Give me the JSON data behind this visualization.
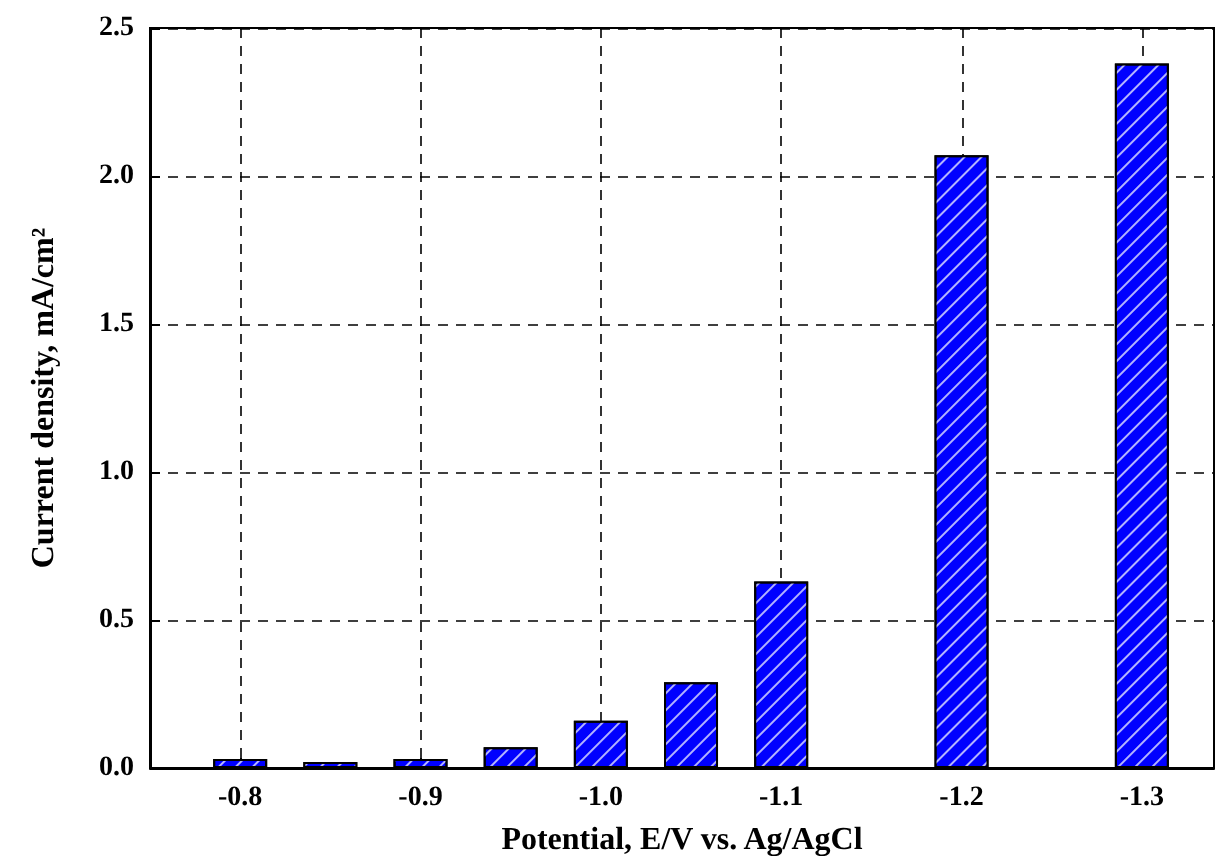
{
  "chart_data": {
    "type": "bar",
    "xlabel": "Potential, E/V vs. Ag/AgCl",
    "ylabel": "Current density, mA/cm²",
    "x": [
      -0.8,
      -0.85,
      -0.9,
      -0.95,
      -1.0,
      -1.05,
      -1.1,
      -1.2,
      -1.3
    ],
    "values": [
      0.03,
      0.02,
      0.03,
      0.07,
      0.16,
      0.29,
      0.63,
      2.07,
      2.38
    ],
    "color": "#0000ff",
    "xlim": [
      -0.75,
      -1.34
    ],
    "xticks": [
      -0.8,
      -0.9,
      {
        "value": -1.0,
        "label": "-1.0"
      },
      -1.1,
      -1.2,
      -1.3
    ],
    "ylim": [
      0,
      2.5
    ],
    "yticks": [
      {
        "value": 0,
        "label": "0.0"
      },
      0.5,
      {
        "value": 1,
        "label": "1.0"
      },
      1.5,
      {
        "value": 2,
        "label": "2.0"
      },
      2.5
    ],
    "grid": true
  }
}
